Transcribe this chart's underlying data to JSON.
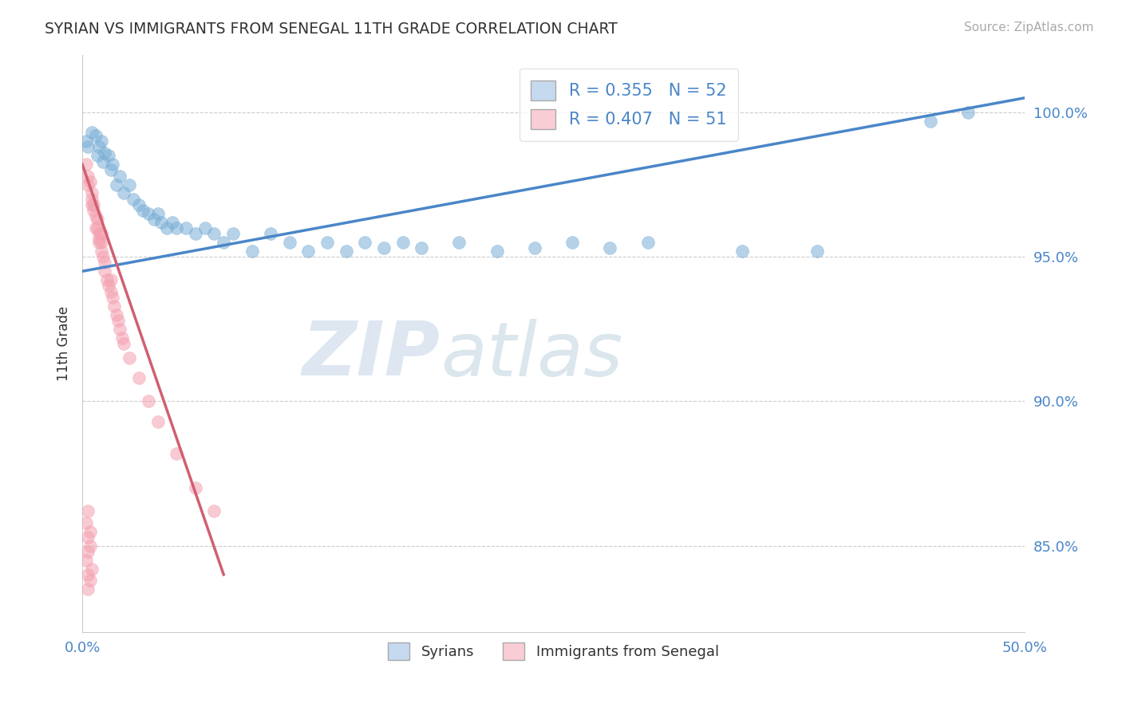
{
  "title": "SYRIAN VS IMMIGRANTS FROM SENEGAL 11TH GRADE CORRELATION CHART",
  "source": "Source: ZipAtlas.com",
  "watermark": "ZIPatlas",
  "ylabel": "11th Grade",
  "xlim": [
    0.0,
    0.5
  ],
  "ylim": [
    0.82,
    1.02
  ],
  "ytick_labels": [
    "100.0%",
    "95.0%",
    "90.0%",
    "85.0%"
  ],
  "ytick_values": [
    1.0,
    0.95,
    0.9,
    0.85
  ],
  "xtick_labels": [
    "0.0%",
    "50.0%"
  ],
  "xtick_values": [
    0.0,
    0.5
  ],
  "legend_blue_label": "R = 0.355   N = 52",
  "legend_pink_label": "R = 0.407   N = 51",
  "legend_bottom_blue": "Syrians",
  "legend_bottom_pink": "Immigrants from Senegal",
  "blue_color": "#7aaed6",
  "pink_color": "#f4a0b0",
  "blue_scatter": [
    [
      0.002,
      0.99
    ],
    [
      0.003,
      0.988
    ],
    [
      0.005,
      0.993
    ],
    [
      0.007,
      0.992
    ],
    [
      0.008,
      0.985
    ],
    [
      0.009,
      0.988
    ],
    [
      0.01,
      0.99
    ],
    [
      0.011,
      0.983
    ],
    [
      0.012,
      0.986
    ],
    [
      0.014,
      0.985
    ],
    [
      0.015,
      0.98
    ],
    [
      0.016,
      0.982
    ],
    [
      0.018,
      0.975
    ],
    [
      0.02,
      0.978
    ],
    [
      0.022,
      0.972
    ],
    [
      0.025,
      0.975
    ],
    [
      0.027,
      0.97
    ],
    [
      0.03,
      0.968
    ],
    [
      0.032,
      0.966
    ],
    [
      0.035,
      0.965
    ],
    [
      0.038,
      0.963
    ],
    [
      0.04,
      0.965
    ],
    [
      0.042,
      0.962
    ],
    [
      0.045,
      0.96
    ],
    [
      0.048,
      0.962
    ],
    [
      0.05,
      0.96
    ],
    [
      0.055,
      0.96
    ],
    [
      0.06,
      0.958
    ],
    [
      0.065,
      0.96
    ],
    [
      0.07,
      0.958
    ],
    [
      0.075,
      0.955
    ],
    [
      0.08,
      0.958
    ],
    [
      0.09,
      0.952
    ],
    [
      0.1,
      0.958
    ],
    [
      0.11,
      0.955
    ],
    [
      0.12,
      0.952
    ],
    [
      0.13,
      0.955
    ],
    [
      0.14,
      0.952
    ],
    [
      0.15,
      0.955
    ],
    [
      0.16,
      0.953
    ],
    [
      0.17,
      0.955
    ],
    [
      0.18,
      0.953
    ],
    [
      0.2,
      0.955
    ],
    [
      0.22,
      0.952
    ],
    [
      0.24,
      0.953
    ],
    [
      0.26,
      0.955
    ],
    [
      0.28,
      0.953
    ],
    [
      0.3,
      0.955
    ],
    [
      0.35,
      0.952
    ],
    [
      0.39,
      0.952
    ],
    [
      0.45,
      0.997
    ],
    [
      0.47,
      1.0
    ]
  ],
  "pink_scatter": [
    [
      0.002,
      0.982
    ],
    [
      0.003,
      0.978
    ],
    [
      0.003,
      0.975
    ],
    [
      0.004,
      0.976
    ],
    [
      0.005,
      0.972
    ],
    [
      0.005,
      0.968
    ],
    [
      0.005,
      0.97
    ],
    [
      0.006,
      0.966
    ],
    [
      0.006,
      0.968
    ],
    [
      0.007,
      0.964
    ],
    [
      0.007,
      0.96
    ],
    [
      0.008,
      0.963
    ],
    [
      0.008,
      0.96
    ],
    [
      0.009,
      0.958
    ],
    [
      0.009,
      0.956
    ],
    [
      0.009,
      0.955
    ],
    [
      0.01,
      0.952
    ],
    [
      0.01,
      0.955
    ],
    [
      0.01,
      0.958
    ],
    [
      0.011,
      0.95
    ],
    [
      0.012,
      0.948
    ],
    [
      0.012,
      0.945
    ],
    [
      0.013,
      0.942
    ],
    [
      0.014,
      0.94
    ],
    [
      0.015,
      0.938
    ],
    [
      0.015,
      0.942
    ],
    [
      0.016,
      0.936
    ],
    [
      0.017,
      0.933
    ],
    [
      0.018,
      0.93
    ],
    [
      0.019,
      0.928
    ],
    [
      0.02,
      0.925
    ],
    [
      0.021,
      0.922
    ],
    [
      0.022,
      0.92
    ],
    [
      0.025,
      0.915
    ],
    [
      0.03,
      0.908
    ],
    [
      0.035,
      0.9
    ],
    [
      0.04,
      0.893
    ],
    [
      0.05,
      0.882
    ],
    [
      0.06,
      0.87
    ],
    [
      0.07,
      0.862
    ],
    [
      0.004,
      0.855
    ],
    [
      0.003,
      0.848
    ],
    [
      0.003,
      0.84
    ],
    [
      0.005,
      0.842
    ],
    [
      0.003,
      0.835
    ],
    [
      0.004,
      0.838
    ],
    [
      0.002,
      0.845
    ],
    [
      0.003,
      0.853
    ],
    [
      0.004,
      0.85
    ],
    [
      0.002,
      0.858
    ],
    [
      0.003,
      0.862
    ]
  ],
  "blue_trend_x": [
    0.0,
    0.5
  ],
  "blue_trend_y": [
    0.945,
    1.005
  ],
  "pink_trend_x": [
    0.0,
    0.075
  ],
  "pink_trend_y": [
    0.982,
    0.84
  ],
  "grid_color": "#cccccc",
  "background_color": "#ffffff"
}
